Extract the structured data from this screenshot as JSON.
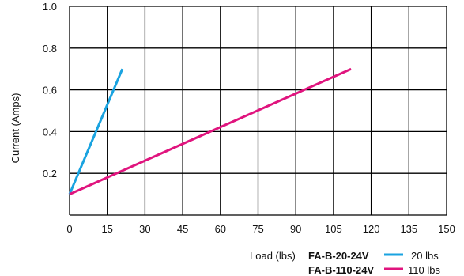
{
  "chart_data": {
    "type": "line",
    "xlabel": "Load (lbs)",
    "ylabel": "Current (Amps)",
    "xlim": [
      0,
      150
    ],
    "ylim": [
      0,
      1.0
    ],
    "x_ticks": [
      "0",
      "15",
      "30",
      "45",
      "60",
      "75",
      "90",
      "105",
      "120",
      "135",
      "150"
    ],
    "y_ticks": [
      "0.2",
      "0.4",
      "0.6",
      "0.8",
      "1.0"
    ],
    "grid": true,
    "legend": "bottom-right",
    "series": [
      {
        "name": "FA-B-20-24V",
        "capacity": "20 lbs",
        "color": "#1aa3e0",
        "points": [
          {
            "x": 0,
            "y": 0.1
          },
          {
            "x": 21,
            "y": 0.7
          }
        ]
      },
      {
        "name": "FA-B-110-24V",
        "capacity": "110 lbs",
        "color": "#e0147e",
        "points": [
          {
            "x": 0,
            "y": 0.1
          },
          {
            "x": 112,
            "y": 0.7
          }
        ]
      }
    ]
  }
}
